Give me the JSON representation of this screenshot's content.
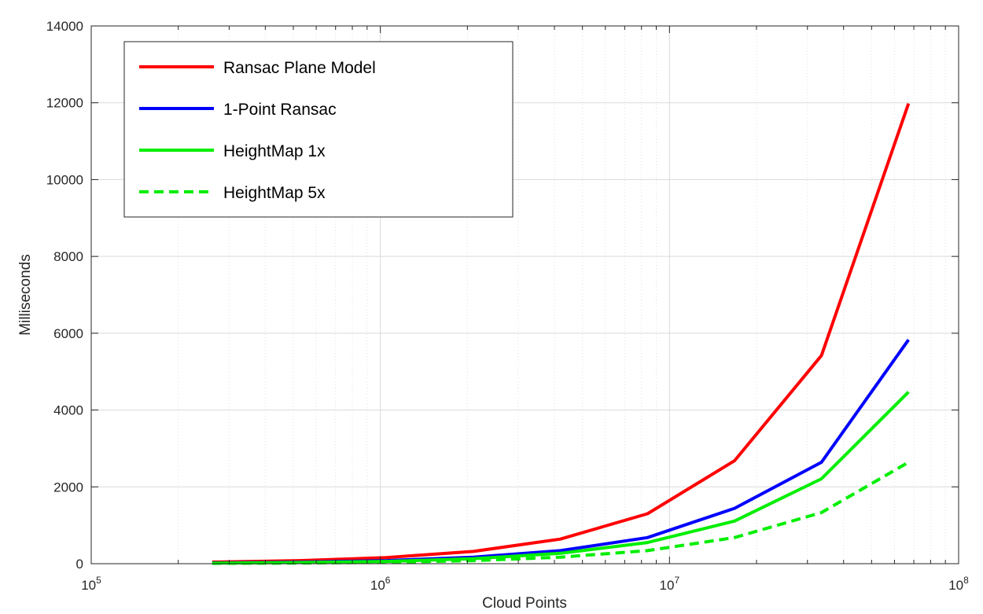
{
  "chart_data": {
    "type": "line",
    "title": "",
    "xlabel": "Cloud Points",
    "ylabel": "Milliseconds",
    "xscale": "log",
    "xlim": [
      100000,
      100000000
    ],
    "ylim": [
      0,
      14000
    ],
    "grid": true,
    "legend_position": "top-left",
    "x": [
      262144,
      524288,
      1048576,
      2097152,
      4194304,
      8388608,
      16777216,
      33554432,
      67108864
    ],
    "x_tick_labels": [
      {
        "base": "10",
        "exp": "5"
      },
      {
        "base": "10",
        "exp": "6"
      },
      {
        "base": "10",
        "exp": "7"
      },
      {
        "base": "10",
        "exp": "8"
      }
    ],
    "y_ticks": [
      0,
      2000,
      4000,
      6000,
      8000,
      10000,
      12000,
      14000
    ],
    "series": [
      {
        "name": "Ransac Plane Model",
        "color": "#ff0000",
        "dash": "solid",
        "values": [
          40,
          80,
          160,
          320,
          640,
          1300,
          2680,
          5420,
          11980
        ]
      },
      {
        "name": "1-Point Ransac",
        "color": "#0000ff",
        "dash": "solid",
        "values": [
          20,
          40,
          80,
          170,
          340,
          680,
          1440,
          2640,
          5830
        ]
      },
      {
        "name": "HeightMap 1x",
        "color": "#00ee00",
        "dash": "solid",
        "values": [
          15,
          30,
          60,
          130,
          270,
          550,
          1110,
          2210,
          4470
        ]
      },
      {
        "name": "HeightMap 5x",
        "color": "#00ee00",
        "dash": "dashed",
        "values": [
          8,
          16,
          35,
          80,
          170,
          340,
          680,
          1330,
          2640
        ]
      }
    ]
  }
}
